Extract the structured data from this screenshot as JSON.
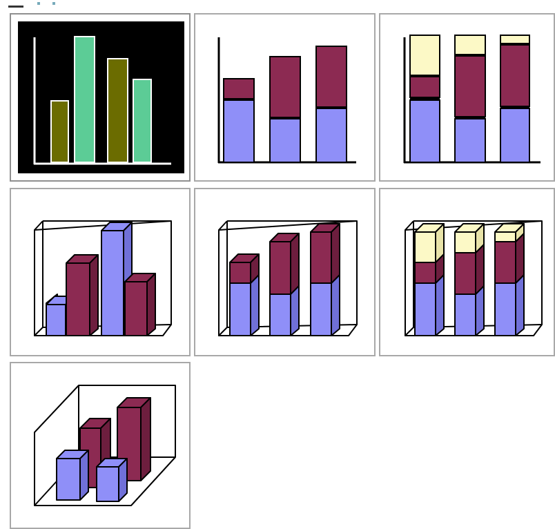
{
  "window": {
    "title": ""
  },
  "colors": {
    "periwinkle": "#8f8ff8",
    "plum": "#8c2a52",
    "cream": "#fcf9c6",
    "mint": "#5ccc96",
    "olive": "#6b6c00",
    "black": "#000000",
    "tile_border": "#a8a8a8"
  },
  "chart_subtypes": [
    {
      "id": "clustered-column",
      "selected": true,
      "icon": "clustered-column-icon"
    },
    {
      "id": "stacked-column",
      "selected": false,
      "icon": "stacked-column-icon"
    },
    {
      "id": "100-percent-stacked-column",
      "selected": false,
      "icon": "percent-stacked-column-icon"
    },
    {
      "id": "3d-clustered-column",
      "selected": false,
      "icon": "3d-clustered-column-icon"
    },
    {
      "id": "3d-stacked-column",
      "selected": false,
      "icon": "3d-stacked-column-icon"
    },
    {
      "id": "3d-100-percent-stacked-column",
      "selected": false,
      "icon": "3d-percent-stacked-column-icon"
    },
    {
      "id": "3d-column",
      "selected": false,
      "icon": "3d-column-icon"
    }
  ]
}
